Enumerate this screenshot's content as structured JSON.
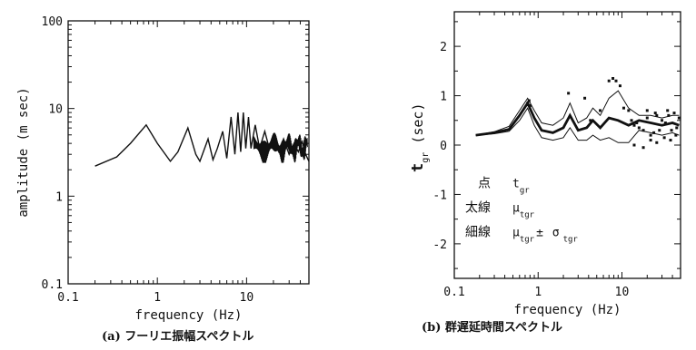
{
  "chart_data": [
    {
      "type": "line",
      "caption": "(a) フーリエ振幅スペクトル",
      "xlabel": "frequency (Hz)",
      "ylabel": "amplitude (m sec)",
      "xscale": "log",
      "yscale": "log",
      "xlim": [
        0.1,
        50
      ],
      "ylim": [
        0.1,
        100
      ],
      "x_ticks": [
        "0.1",
        "1",
        "10"
      ],
      "y_ticks": [
        "0.1",
        "1",
        "10",
        "100"
      ],
      "grid": false,
      "series": [
        {
          "x": [
            0.2,
            0.35,
            0.5,
            0.75,
            1.0,
            1.4,
            1.7,
            2.2,
            2.7,
            3.0,
            3.7,
            4.2,
            4.7,
            5.4,
            6.0,
            6.7,
            7.4,
            8.0,
            8.6,
            9.2,
            9.8,
            10.5,
            11.2,
            12.5,
            14,
            16,
            18,
            20,
            23,
            26,
            30,
            34,
            38,
            42,
            46,
            50
          ],
          "y": [
            2.2,
            2.8,
            4.0,
            6.5,
            4.0,
            2.5,
            3.2,
            6.0,
            3.0,
            2.5,
            4.5,
            2.6,
            3.5,
            5.5,
            2.7,
            8.0,
            3.0,
            9.0,
            3.2,
            9.0,
            3.5,
            8.0,
            3.5,
            6.5,
            3.5,
            5.5,
            3.5,
            4.5,
            3.2,
            4.5,
            3.0,
            4.0,
            3.2,
            4.2,
            3.0,
            2.5
          ]
        }
      ]
    },
    {
      "type": "scatter",
      "caption": "(b) 群遅延時間スペクトル",
      "xlabel": "frequency (Hz)",
      "ylabel": "t_gr (sec)",
      "xscale": "log",
      "xlim": [
        0.1,
        50
      ],
      "ylim": [
        -2.7,
        2.7
      ],
      "x_ticks": [
        "0.1",
        "1",
        "10"
      ],
      "y_ticks": [
        "-2",
        "-1",
        "0",
        "1",
        "2"
      ],
      "grid": false,
      "legend": [
        {
          "marker": "点",
          "label": "t",
          "sub": "gr"
        },
        {
          "marker": "太線",
          "label": "μ",
          "sub": "tgr"
        },
        {
          "marker": "細線",
          "label": "μ",
          "sub": "tgr",
          "pm": "±",
          "sigma": "σ",
          "sigma_sub": "tgr"
        }
      ],
      "series": [
        {
          "name": "μ_tgr",
          "x": [
            0.18,
            0.3,
            0.45,
            0.6,
            0.75,
            0.9,
            1.1,
            1.5,
            2.0,
            2.4,
            3.0,
            3.8,
            4.5,
            5.5,
            7.0,
            9.0,
            12,
            16,
            22,
            30,
            40,
            48
          ],
          "y": [
            0.2,
            0.25,
            0.32,
            0.6,
            0.85,
            0.55,
            0.3,
            0.25,
            0.35,
            0.6,
            0.3,
            0.35,
            0.5,
            0.35,
            0.55,
            0.5,
            0.4,
            0.5,
            0.45,
            0.4,
            0.45,
            0.4
          ]
        },
        {
          "name": "μ+σ",
          "x": [
            0.18,
            0.3,
            0.45,
            0.6,
            0.75,
            0.9,
            1.1,
            1.5,
            2.0,
            2.4,
            3.0,
            3.8,
            4.5,
            5.5,
            7.0,
            9.0,
            12,
            16,
            22,
            30,
            40,
            48
          ],
          "y": [
            0.2,
            0.27,
            0.38,
            0.7,
            0.95,
            0.7,
            0.45,
            0.4,
            0.55,
            0.85,
            0.45,
            0.55,
            0.75,
            0.6,
            0.95,
            1.1,
            0.75,
            0.6,
            0.6,
            0.55,
            0.6,
            0.6
          ]
        },
        {
          "name": "μ-σ",
          "x": [
            0.18,
            0.3,
            0.45,
            0.6,
            0.75,
            0.9,
            1.1,
            1.5,
            2.0,
            2.4,
            3.0,
            3.8,
            4.5,
            5.5,
            7.0,
            9.0,
            12,
            16,
            22,
            30,
            40,
            48
          ],
          "y": [
            0.2,
            0.23,
            0.28,
            0.5,
            0.75,
            0.4,
            0.15,
            0.1,
            0.15,
            0.35,
            0.1,
            0.1,
            0.2,
            0.1,
            0.15,
            0.05,
            0.05,
            0.3,
            0.25,
            0.2,
            0.25,
            0.2
          ]
        }
      ],
      "points": {
        "x": [
          0.75,
          0.78,
          0.8,
          2.3,
          3.6,
          4.2,
          5.5,
          7.0,
          7.8,
          8.5,
          9.5,
          10.5,
          12,
          13,
          14,
          15,
          16,
          18,
          20,
          22,
          24,
          26,
          28,
          30,
          33,
          36,
          39,
          42,
          45,
          48,
          14,
          18,
          22,
          26,
          32,
          38,
          44,
          20,
          25,
          35
        ],
        "y": [
          0.85,
          0.9,
          0.8,
          1.05,
          0.95,
          0.5,
          0.7,
          1.3,
          1.35,
          1.3,
          1.2,
          0.75,
          0.7,
          0.5,
          0.4,
          0.45,
          0.35,
          0.3,
          0.55,
          0.2,
          0.25,
          0.6,
          0.3,
          0.5,
          0.45,
          0.6,
          0.3,
          0.65,
          0.35,
          0.55,
          0.0,
          -0.05,
          0.1,
          0.05,
          0.15,
          0.1,
          0.2,
          0.7,
          0.65,
          0.7
        ]
      }
    }
  ]
}
